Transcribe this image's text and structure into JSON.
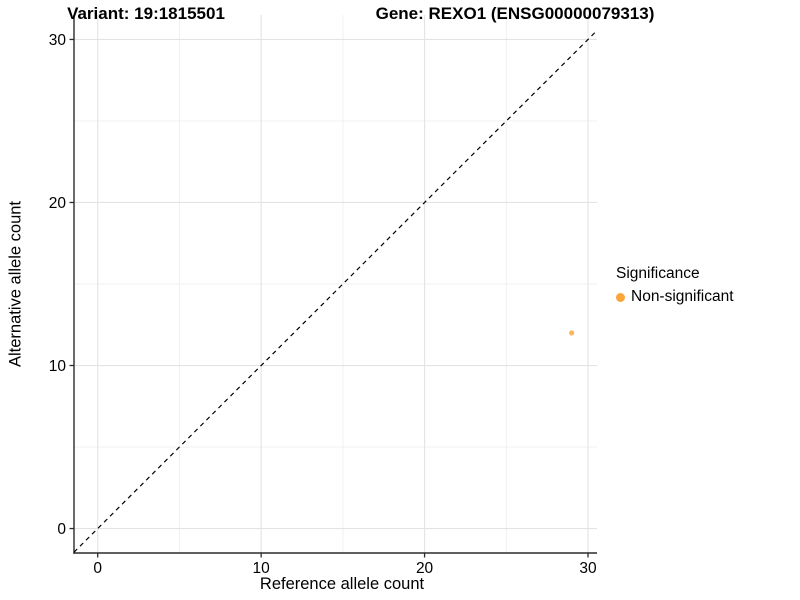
{
  "chart_data": {
    "type": "scatter",
    "titles": {
      "left": "Variant: 19:1815501",
      "right": "Gene: REXO1 (ENSG00000079313)"
    },
    "xlabel": "Reference allele count",
    "ylabel": "Alternative allele count",
    "xticks": [
      0,
      10,
      20,
      30
    ],
    "yticks": [
      0,
      10,
      20,
      30
    ],
    "minor_grid_ticks": [
      5,
      15,
      25
    ],
    "xlim": [
      -1.45,
      30.55
    ],
    "ylim": [
      -1.5,
      31.5
    ],
    "grid": "on",
    "points": [
      {
        "x": 29,
        "y": 12,
        "series": "Non-significant",
        "color": "#FAA43A"
      }
    ],
    "reference_line": {
      "type": "identity",
      "equation": "y = x",
      "style": "dashed",
      "color": "#000000"
    },
    "legend": {
      "position": "right",
      "title": "Significance",
      "items": [
        {
          "label": "Non-significant",
          "color": "#FAA43A"
        }
      ]
    },
    "colors": {
      "axis_line": "#2B2B2B",
      "grid_major": "#E3E3E3",
      "grid_minor": "#EFEFEF",
      "background": "#FFFFFF"
    }
  }
}
